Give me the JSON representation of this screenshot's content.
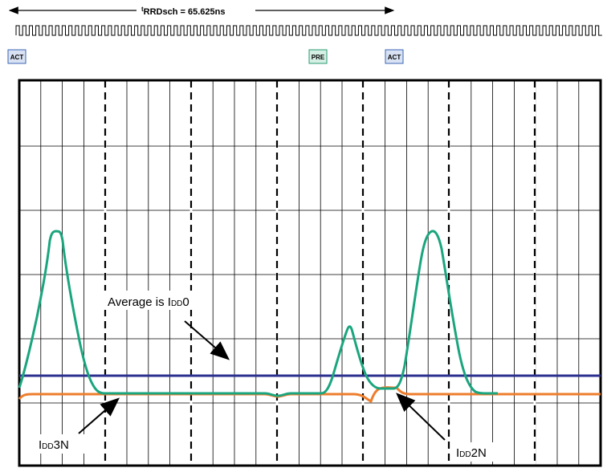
{
  "timing": {
    "label_sup": "t",
    "label_main": "RRDsch = 65.625ns"
  },
  "commands": [
    "ACT",
    "PRE",
    "ACT"
  ],
  "annotations": {
    "average_text": "Average is I",
    "average_sub": "DD",
    "average_suffix": "0",
    "idd3n_main": "I",
    "idd3n_sub": "DD",
    "idd3n_suffix": "3N",
    "idd2n_main": "I",
    "idd2n_sub": "DD",
    "idd2n_suffix": "2N"
  },
  "colors": {
    "active_current": "#1aa57e",
    "average_line": "#2b2f8e",
    "standby_current": "#ee7d2c",
    "act_badge_fill": "#d9e2f3",
    "act_badge_stroke": "#3a66b5",
    "pre_badge_fill": "#d4efe4",
    "pre_badge_stroke": "#2a9a72",
    "grid": "#000000"
  }
}
